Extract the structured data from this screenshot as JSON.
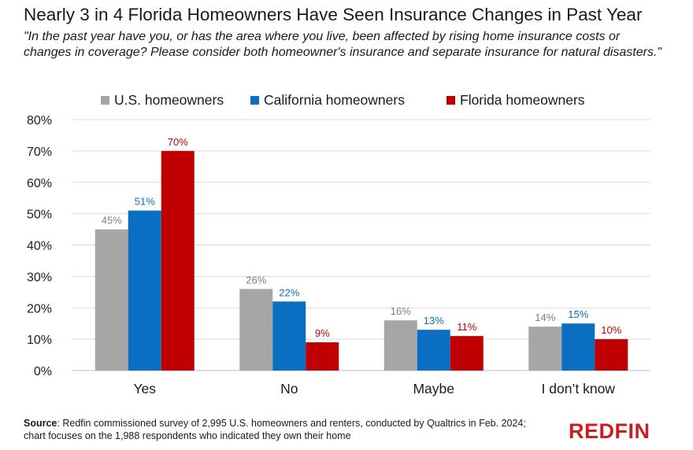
{
  "chart_data": {
    "type": "bar",
    "title": "Nearly 3 in 4 Florida Homeowners Have Seen Insurance Changes in Past Year",
    "subtitle": "\"In the past year have you, or has the area where you live, been affected by rising home insurance costs or changes in coverage? Please consider both homeowner's insurance and separate insurance for natural disasters.\"",
    "categories": [
      "Yes",
      "No",
      "Maybe",
      "I don’t know"
    ],
    "series": [
      {
        "name": "U.S. homeowners",
        "color": "#a6a6a6",
        "label_color": "#7f7f7f",
        "values": [
          45,
          26,
          16,
          14
        ],
        "labels": [
          "45%",
          "26%",
          "16%",
          "14%"
        ]
      },
      {
        "name": "California homeowners",
        "color": "#0a6fc2",
        "label_color": "#0a6fc2",
        "values": [
          51,
          22,
          13,
          15
        ],
        "labels": [
          "51%",
          "22%",
          "13%",
          "15%"
        ]
      },
      {
        "name": "Florida homeowners",
        "color": "#c00000",
        "label_color": "#c00000",
        "values": [
          70,
          9,
          11,
          10
        ],
        "labels": [
          "70%",
          "9%",
          "11%",
          "10%"
        ]
      }
    ],
    "ylim": [
      0,
      80
    ],
    "yticks": [
      0,
      10,
      20,
      30,
      40,
      50,
      60,
      70,
      80
    ],
    "ytick_labels": [
      "0%",
      "10%",
      "20%",
      "30%",
      "40%",
      "50%",
      "60%",
      "70%",
      "80%"
    ],
    "xlabel": "",
    "ylabel": "",
    "grid": true,
    "legend_position": "top"
  },
  "footer": {
    "source_label": "Source",
    "source_text": ": Redfin commissioned survey of 2,995 U.S. homeowners and renters, conducted by Qualtrics in Feb. 2024; chart focuses on the 1,988 respondents who indicated they own their home"
  },
  "logo": {
    "text": "REDFIN",
    "color": "#c82021"
  }
}
